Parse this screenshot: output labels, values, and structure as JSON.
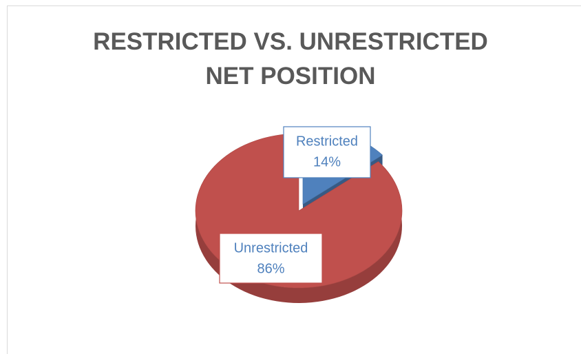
{
  "chart_data": {
    "type": "pie",
    "title": "RESTRICTED VS. UNRESTRICTED NET POSITION",
    "categories": [
      "Restricted",
      "Unrestricted"
    ],
    "values": [
      14,
      86
    ],
    "value_labels": [
      "14%",
      "86%"
    ],
    "colors": [
      "#4f81bd",
      "#c0504d"
    ]
  }
}
